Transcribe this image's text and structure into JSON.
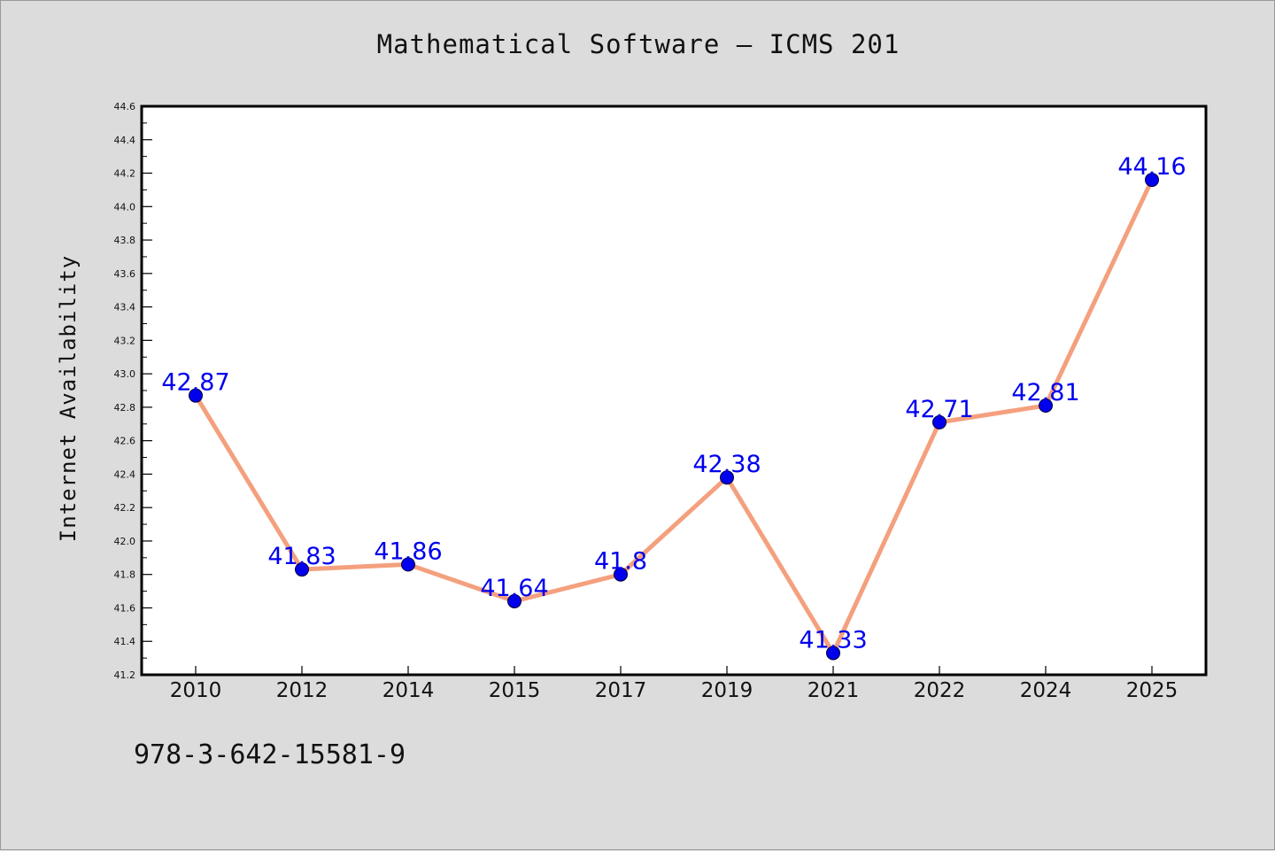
{
  "page": {
    "title": "Mathematical Software – ICMS 201",
    "footer": "978-3-642-15581-9"
  },
  "chart_data": {
    "type": "line",
    "title": "Mathematical Software – ICMS 201",
    "xlabel": "",
    "ylabel": "Internet Availability",
    "categories": [
      "2010",
      "2012",
      "2014",
      "2015",
      "2017",
      "2019",
      "2021",
      "2022",
      "2024",
      "2025"
    ],
    "series": [
      {
        "values": [
          42.87,
          41.83,
          41.86,
          41.64,
          41.8,
          42.38,
          41.33,
          42.71,
          42.81,
          44.16
        ],
        "labels": [
          "42.87",
          "41.83",
          "41.86",
          "41.64",
          "41.8",
          "42.38",
          "41.33",
          "42.71",
          "42.81",
          "44.16"
        ]
      }
    ],
    "ylim": [
      41.2,
      44.6
    ],
    "yticks": [
      "41.2",
      "41.4",
      "41.6",
      "41.8",
      "42.0",
      "42.2",
      "42.4",
      "42.6",
      "42.8",
      "43.0",
      "43.2",
      "43.4",
      "43.6",
      "43.8",
      "44.0",
      "44.2",
      "44.4",
      "44.6"
    ],
    "grid": false,
    "legend": "none",
    "colors": {
      "line": "#f4a07e",
      "marker": "#0000ee",
      "label": "#0000ee",
      "plot_bg": "#ffffff",
      "page_bg": "#dcdcdc"
    }
  }
}
